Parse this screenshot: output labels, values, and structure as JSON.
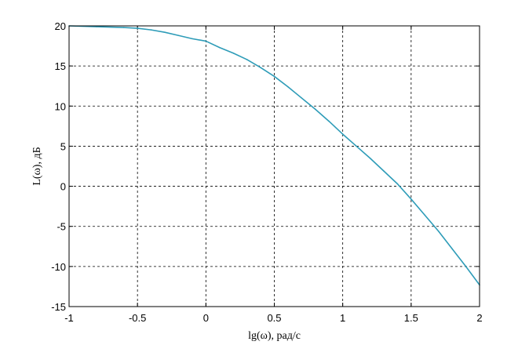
{
  "chart_data": {
    "type": "line",
    "title": "",
    "xlabel": "lg(ω), рад/с",
    "ylabel": "L(ω), дБ",
    "xlim": [
      -1,
      2
    ],
    "ylim": [
      -15,
      20
    ],
    "grid": true,
    "x_ticks": [
      -1,
      -0.5,
      0,
      0.5,
      1,
      1.5,
      2
    ],
    "x_tick_labels": [
      "-1",
      "-0.5",
      "0",
      "0.5",
      "1",
      "1.5",
      "2"
    ],
    "y_ticks": [
      -15,
      -10,
      -5,
      0,
      5,
      10,
      15,
      20
    ],
    "y_tick_labels": [
      "-15",
      "-10",
      "-5",
      "0",
      "5",
      "10",
      "15",
      "20"
    ],
    "series": [
      {
        "color": "#2e9cb8",
        "x": [
          -1.0,
          -0.8,
          -0.6,
          -0.5,
          -0.4,
          -0.3,
          -0.2,
          -0.1,
          0.0,
          0.1,
          0.2,
          0.3,
          0.4,
          0.5,
          0.6,
          0.7,
          0.8,
          0.9,
          1.0,
          1.1,
          1.2,
          1.3,
          1.4,
          1.5,
          1.6,
          1.7,
          1.8,
          1.9,
          2.0
        ],
        "y": [
          20.0,
          19.9,
          19.8,
          19.7,
          19.5,
          19.2,
          18.8,
          18.4,
          18.1,
          17.3,
          16.6,
          15.8,
          14.8,
          13.7,
          12.4,
          11.0,
          9.6,
          8.1,
          6.5,
          5.0,
          3.5,
          1.9,
          0.3,
          -1.6,
          -3.6,
          -5.6,
          -7.8,
          -10.0,
          -12.3
        ]
      }
    ]
  }
}
